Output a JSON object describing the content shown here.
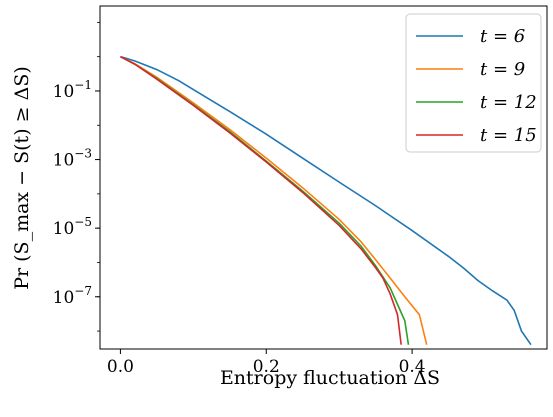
{
  "chart_data": {
    "type": "line",
    "xlabel": "Entropy fluctuation ΔS",
    "ylabel": "Pr (S_max − S(t) ≥ ΔS)",
    "yscale": "log",
    "xlim": [
      -0.028,
      0.585
    ],
    "ylim": [
      3e-09,
      30
    ],
    "x_ticks": [
      0.0,
      0.2,
      0.4
    ],
    "x_tick_labels": [
      "0.0",
      "0.2",
      "0.4"
    ],
    "y_ticks": [
      0.1,
      0.001,
      1e-05,
      1e-07
    ],
    "y_tick_labels": [
      {
        "base": "10",
        "exp": "−1"
      },
      {
        "base": "10",
        "exp": "−3"
      },
      {
        "base": "10",
        "exp": "−5"
      },
      {
        "base": "10",
        "exp": "−7"
      }
    ],
    "grid": false,
    "legend_position": "top-right",
    "series": [
      {
        "name": "t = 6",
        "color": "#1f77b4",
        "points": [
          [
            0.0,
            1.0
          ],
          [
            0.02,
            0.75
          ],
          [
            0.05,
            0.42
          ],
          [
            0.08,
            0.2
          ],
          [
            0.1,
            0.11
          ],
          [
            0.15,
            0.025
          ],
          [
            0.2,
            0.0055
          ],
          [
            0.25,
            0.0011
          ],
          [
            0.3,
            0.00022
          ],
          [
            0.35,
            4.5e-05
          ],
          [
            0.4,
            8.5e-06
          ],
          [
            0.45,
            1.5e-06
          ],
          [
            0.47,
            7e-07
          ],
          [
            0.49,
            3e-07
          ],
          [
            0.51,
            1.5e-07
          ],
          [
            0.53,
            8e-08
          ],
          [
            0.54,
            4e-08
          ],
          [
            0.55,
            1e-08
          ],
          [
            0.563,
            4e-09
          ]
        ]
      },
      {
        "name": "t = 9",
        "color": "#ff7f0e",
        "points": [
          [
            0.0,
            1.0
          ],
          [
            0.02,
            0.62
          ],
          [
            0.05,
            0.25
          ],
          [
            0.1,
            0.045
          ],
          [
            0.15,
            0.0075
          ],
          [
            0.2,
            0.0011
          ],
          [
            0.25,
            0.00015
          ],
          [
            0.3,
            1.8e-05
          ],
          [
            0.33,
            4e-06
          ],
          [
            0.35,
            1.2e-06
          ],
          [
            0.37,
            3.5e-07
          ],
          [
            0.39,
            1e-07
          ],
          [
            0.41,
            3e-08
          ],
          [
            0.42,
            4e-09
          ]
        ]
      },
      {
        "name": "t = 12",
        "color": "#2ca02c",
        "points": [
          [
            0.0,
            1.0
          ],
          [
            0.02,
            0.6
          ],
          [
            0.05,
            0.23
          ],
          [
            0.1,
            0.04
          ],
          [
            0.15,
            0.0065
          ],
          [
            0.2,
            0.0009
          ],
          [
            0.25,
            0.00012
          ],
          [
            0.3,
            1.4e-05
          ],
          [
            0.33,
            3e-06
          ],
          [
            0.35,
            8e-07
          ],
          [
            0.37,
            1.8e-07
          ],
          [
            0.38,
            6e-08
          ],
          [
            0.39,
            2e-08
          ],
          [
            0.395,
            4e-09
          ]
        ]
      },
      {
        "name": "t = 15",
        "color": "#d62728",
        "points": [
          [
            0.0,
            1.0
          ],
          [
            0.02,
            0.6
          ],
          [
            0.05,
            0.22
          ],
          [
            0.1,
            0.038
          ],
          [
            0.15,
            0.006
          ],
          [
            0.2,
            0.00085
          ],
          [
            0.25,
            0.00011
          ],
          [
            0.3,
            1.2e-05
          ],
          [
            0.33,
            2.5e-06
          ],
          [
            0.35,
            7e-07
          ],
          [
            0.36,
            3.5e-07
          ],
          [
            0.37,
            1.2e-07
          ],
          [
            0.38,
            3e-08
          ],
          [
            0.385,
            4e-09
          ]
        ]
      }
    ]
  }
}
